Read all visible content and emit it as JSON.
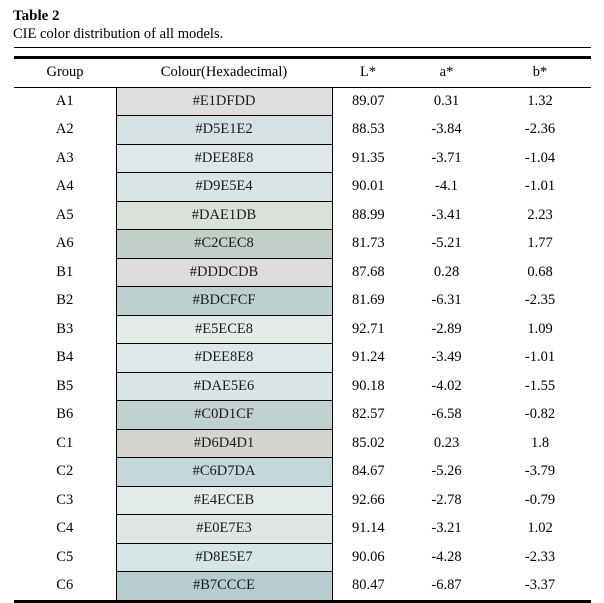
{
  "title": "Table 2",
  "caption": "CIE color distribution of all models.",
  "colors": {
    "rule": "#000000",
    "text": "#000000",
    "background": "#ffffff"
  },
  "table": {
    "columns": [
      "Group",
      "Colour(Hexadecimal)",
      "L*",
      "a*",
      "b*"
    ],
    "rows": [
      {
        "group": "A1",
        "hex": "#E1DFDD",
        "l": "89.07",
        "a": "0.31",
        "b": "1.32"
      },
      {
        "group": "A2",
        "hex": "#D5E1E2",
        "l": "88.53",
        "a": "-3.84",
        "b": "-2.36"
      },
      {
        "group": "A3",
        "hex": "#DEE8E8",
        "l": "91.35",
        "a": "-3.71",
        "b": "-1.04"
      },
      {
        "group": "A4",
        "hex": "#D9E5E4",
        "l": "90.01",
        "a": "-4.1",
        "b": "-1.01"
      },
      {
        "group": "A5",
        "hex": "#DAE1DB",
        "l": "88.99",
        "a": "-3.41",
        "b": "2.23"
      },
      {
        "group": "A6",
        "hex": "#C2CEC8",
        "l": "81.73",
        "a": "-5.21",
        "b": "1.77"
      },
      {
        "group": "B1",
        "hex": "#DDDCDB",
        "l": "87.68",
        "a": "0.28",
        "b": "0.68"
      },
      {
        "group": "B2",
        "hex": "#BDCFCF",
        "l": "81.69",
        "a": "-6.31",
        "b": "-2.35"
      },
      {
        "group": "B3",
        "hex": "#E5ECE8",
        "l": "92.71",
        "a": "-2.89",
        "b": "1.09"
      },
      {
        "group": "B4",
        "hex": "#DEE8E8",
        "l": "91.24",
        "a": "-3.49",
        "b": "-1.01"
      },
      {
        "group": "B5",
        "hex": "#DAE5E6",
        "l": "90.18",
        "a": "-4.02",
        "b": "-1.55"
      },
      {
        "group": "B6",
        "hex": "#C0D1CF",
        "l": "82.57",
        "a": "-6.58",
        "b": "-0.82"
      },
      {
        "group": "C1",
        "hex": "#D6D4D1",
        "l": "85.02",
        "a": "0.23",
        "b": "1.8"
      },
      {
        "group": "C2",
        "hex": "#C6D7DA",
        "l": "84.67",
        "a": "-5.26",
        "b": "-3.79"
      },
      {
        "group": "C3",
        "hex": "#E4ECEB",
        "l": "92.66",
        "a": "-2.78",
        "b": "-0.79"
      },
      {
        "group": "C4",
        "hex": "#E0E7E3",
        "l": "91.14",
        "a": "-3.21",
        "b": "1.02"
      },
      {
        "group": "C5",
        "hex": "#D8E5E7",
        "l": "90.06",
        "a": "-4.28",
        "b": "-2.33"
      },
      {
        "group": "C6",
        "hex": "#B7CCCE",
        "l": "80.47",
        "a": "-6.87",
        "b": "-3.37"
      }
    ]
  }
}
